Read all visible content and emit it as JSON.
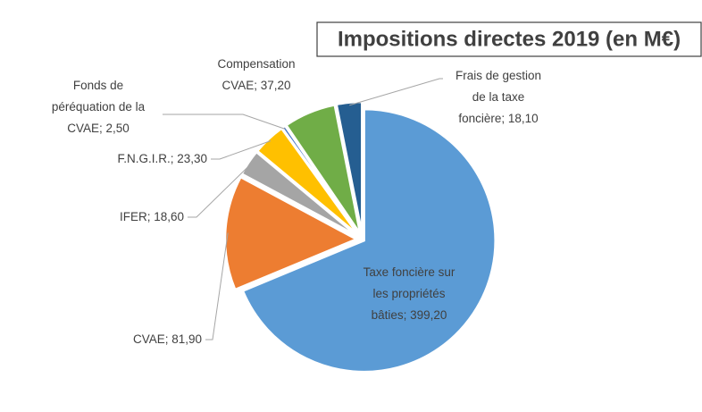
{
  "chart_data": {
    "type": "pie",
    "title": "Impositions directes 2019 (en M€)",
    "categories": [
      "Taxe foncière sur les propriétés bâties",
      "CVAE",
      "IFER",
      "F.N.G.I.R.",
      "Fonds de péréquation de la CVAE",
      "Compensation CVAE",
      "Frais de gestion de la taxe foncière"
    ],
    "values": [
      399.2,
      81.9,
      18.6,
      23.3,
      2.5,
      37.2,
      18.1
    ],
    "value_labels": [
      "Taxe foncière sur les propriétés bâties; 399,20",
      "CVAE; 81,90",
      "IFER; 18,60",
      "F.N.G.I.R.; 23,30",
      "Fonds de péréquation de la CVAE; 2,50",
      "Compensation CVAE; 37,20",
      "Frais de gestion de la taxe foncière; 18,10"
    ],
    "colors": [
      "#5b9bd5",
      "#ed7d31",
      "#a5a5a5",
      "#ffc000",
      "#4472c4",
      "#70ad47",
      "#255e91"
    ]
  }
}
